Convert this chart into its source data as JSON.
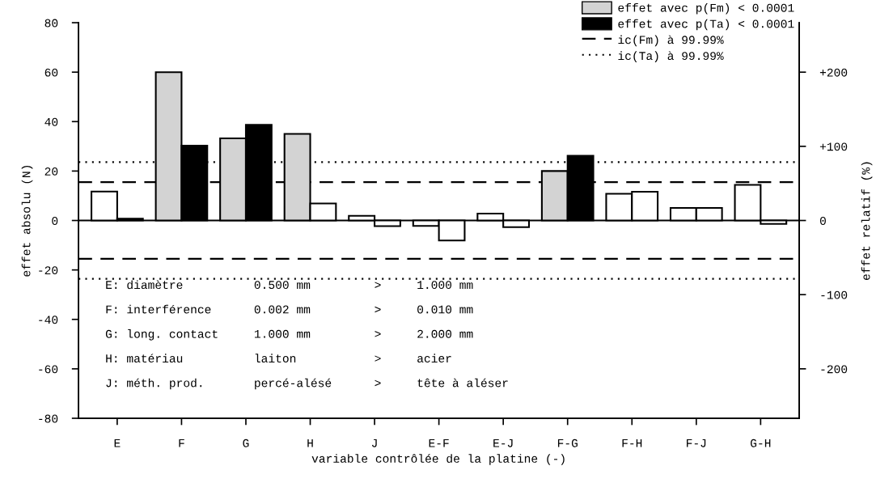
{
  "chart_data": {
    "type": "bar",
    "xlabel": "variable contrôlée de la platine (-)",
    "ylabel": "effet absolu (N)",
    "y2label": "effet relatif (%)",
    "categories": [
      "E",
      "F",
      "G",
      "H",
      "J",
      "E-F",
      "E-J",
      "F-G",
      "F-H",
      "F-J",
      "G-H"
    ],
    "series": [
      {
        "name": "effet avec p(Fm) < 0.0001",
        "color": "#d3d3d3",
        "colors": [
          "#ffffff",
          "#d3d3d3",
          "#d3d3d3",
          "#d3d3d3",
          "#ffffff",
          "#ffffff",
          "#ffffff",
          "#d3d3d3",
          "#ffffff",
          "#ffffff",
          "#ffffff"
        ],
        "values": [
          11.7,
          60,
          33.2,
          35,
          1.9,
          -2.2,
          2.8,
          20,
          10.8,
          5.1,
          14.4
        ]
      },
      {
        "name": "effet avec p(Ta) < 0.0001",
        "color": "#000000",
        "colors": [
          "#ffffff",
          "#000000",
          "#000000",
          "#ffffff",
          "#ffffff",
          "#ffffff",
          "#ffffff",
          "#000000",
          "#ffffff",
          "#ffffff",
          "#ffffff"
        ],
        "values": [
          0.7,
          30.3,
          38.7,
          6.9,
          -2.3,
          -8.1,
          -2.7,
          26.2,
          11.6,
          5.1,
          -1.4
        ]
      }
    ],
    "ylim": [
      -80,
      80
    ],
    "yticks": [
      -80,
      -60,
      -40,
      -20,
      0,
      20,
      40,
      60,
      80
    ],
    "y2lim": [
      -266.7,
      266.7
    ],
    "y2ticks": [
      -200,
      -100,
      0,
      {
        "value": 100,
        "label": "+100"
      },
      {
        "value": 200,
        "label": "+200"
      }
    ],
    "ref_lines": [
      {
        "axis": "y",
        "value": 15.5,
        "label": "ic(Fm) à 99.99%",
        "color": "#000000",
        "line_style": "dashed"
      },
      {
        "axis": "y",
        "value": 23.6,
        "label": "ic(Ta) à 99.99%",
        "color": "#000000",
        "line_style": "dotted"
      },
      {
        "axis": "y",
        "value": -15.5,
        "color": "#000000",
        "line_style": "dashed"
      },
      {
        "axis": "y",
        "value": -23.6,
        "color": "#000000",
        "line_style": "dotted"
      },
      {
        "axis": "y",
        "value": 0,
        "color": "#000000",
        "line_style": "solid"
      }
    ],
    "annotations": [
      "E: diamètre          0.500 mm         >     1.000 mm",
      "F: interférence      0.002 mm         >     0.010 mm",
      "G: long. contact     1.000 mm         >     2.000 mm",
      "H: matériau          laiton           >     acier",
      "J: méth. prod.       percé-alésé      >     tête à aléser"
    ],
    "legend": "top right",
    "grid": false
  }
}
